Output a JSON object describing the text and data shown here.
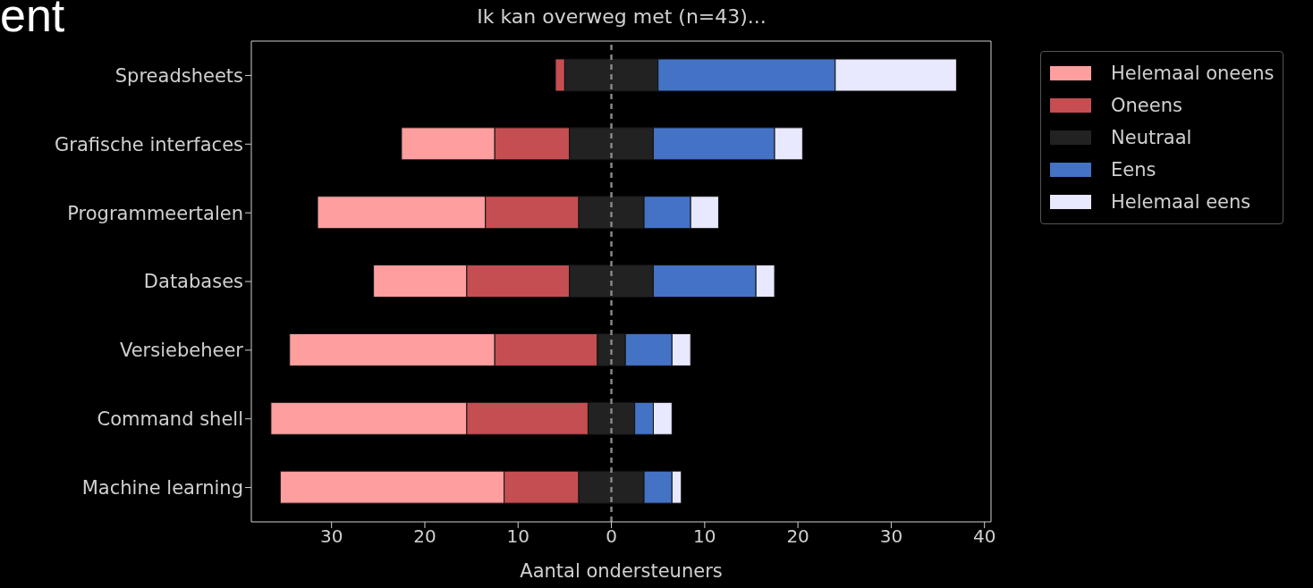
{
  "chart_data": {
    "type": "bar",
    "orientation": "horizontal",
    "title": "Ik kan overweg met (n=43)...",
    "xlabel": "Aantal ondersteuners",
    "annotations": [
      "ent"
    ],
    "categories": [
      "Spreadsheets",
      "Grafische interfaces",
      "Programmeertalen",
      "Databases",
      "Versiebeheer",
      "Command shell",
      "Machine learning"
    ],
    "series": [
      {
        "name": "Helemaal oneens",
        "color": "#ff9e9e",
        "base": [
          null,
          -22.5,
          -31.5,
          -25.5,
          -34.5,
          -36.5,
          -35.5
        ],
        "values": [
          null,
          10,
          18,
          10,
          22,
          21,
          24
        ]
      },
      {
        "name": "Oneens",
        "color": "#c44e52",
        "base": [
          -6,
          -12.5,
          -13.5,
          -15.5,
          -12.5,
          -15.5,
          -11.5
        ],
        "values": [
          1,
          8,
          10,
          11,
          11,
          13,
          8
        ]
      },
      {
        "name": "Neutraal",
        "color": "#222222",
        "base": [
          -5,
          -4.5,
          -3.5,
          -4.5,
          -1.5,
          -2.5,
          -3.5
        ],
        "values": [
          10,
          9,
          7,
          9,
          3,
          5,
          7
        ]
      },
      {
        "name": "Eens",
        "color": "#4472c4",
        "base": [
          5,
          4.5,
          3.5,
          4.5,
          1.5,
          2.5,
          3.5
        ],
        "values": [
          19,
          13,
          5,
          11,
          5,
          2,
          3
        ]
      },
      {
        "name": "Helemaal eens",
        "color": "#e8e8ff",
        "base": [
          24,
          17.5,
          8.5,
          15.5,
          6.5,
          4.5,
          6.5
        ],
        "values": [
          13,
          3,
          3,
          2,
          2,
          2,
          1
        ]
      }
    ],
    "xlim": [
      -38.6,
      40.7
    ],
    "xticks": [
      {
        "value": -30,
        "label": "30"
      },
      {
        "value": -20,
        "label": "20"
      },
      {
        "value": -10,
        "label": "10"
      },
      0,
      10,
      20,
      30,
      40
    ],
    "ref_lines": [
      {
        "axis": "x",
        "value": 0,
        "color": "#888888",
        "line_style": "dashed"
      }
    ],
    "grid": false,
    "legend": "top right"
  }
}
